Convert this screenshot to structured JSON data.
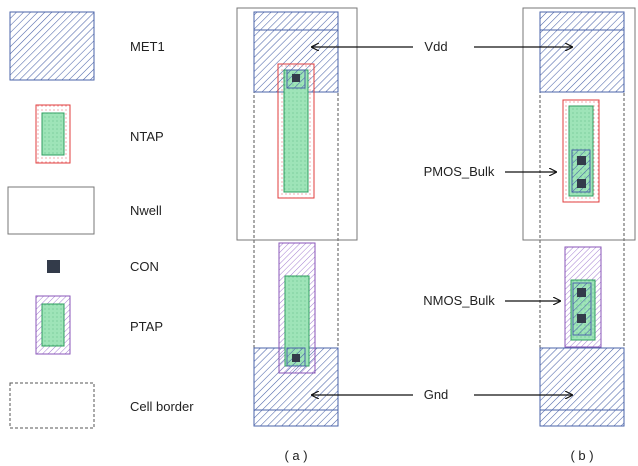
{
  "legend": {
    "items": [
      {
        "key": "met1",
        "label": "MET1"
      },
      {
        "key": "ntap",
        "label": "NTAP"
      },
      {
        "key": "nwell",
        "label": "Nwell"
      },
      {
        "key": "con",
        "label": "CON"
      },
      {
        "key": "ptap",
        "label": "PTAP"
      },
      {
        "key": "cell_border",
        "label": "Cell border"
      }
    ]
  },
  "annotations": {
    "vdd": "Vdd",
    "gnd": "Gnd",
    "pmos_bulk": "PMOS_Bulk",
    "nmos_bulk": "NMOS_Bulk"
  },
  "subfigures": {
    "a": {
      "caption": "( a )"
    },
    "b": {
      "caption": "( b )"
    }
  },
  "colors": {
    "met1_hatch": "#4a63a8",
    "ntap_outline": "#e03c3c",
    "ntap_dots": "#e8737a",
    "diffusion_fill": "#9ee4b8",
    "diffusion_stroke": "#2f9e5f",
    "ptap_outline": "#8a55b8",
    "ptap_hatch": "#9a70cc",
    "contact": "#333b4a",
    "nwell_stroke": "#777777",
    "border_stroke": "#555555",
    "arrow": "#111111"
  }
}
